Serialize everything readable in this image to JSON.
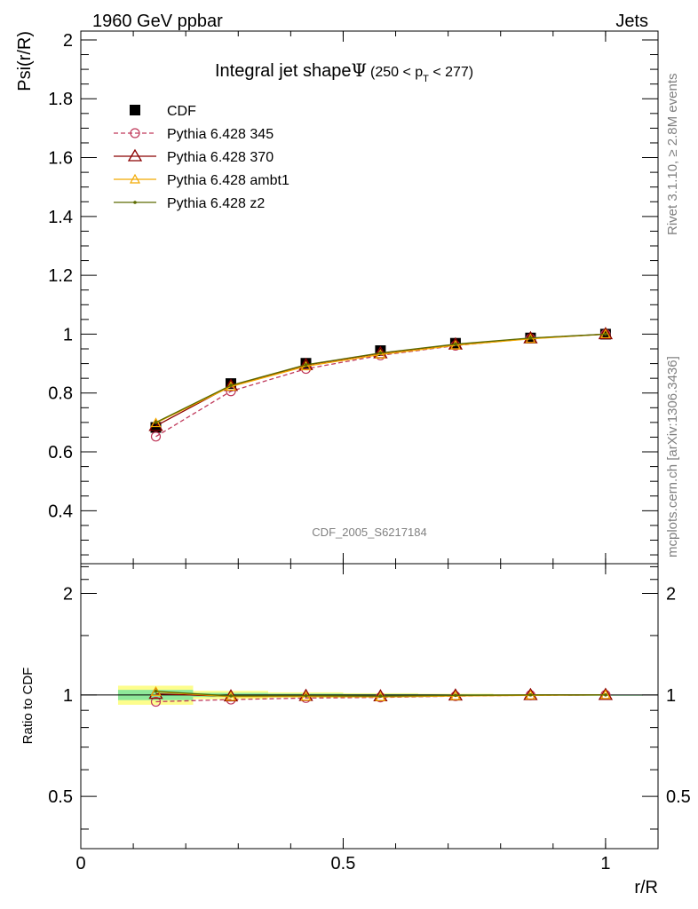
{
  "header": {
    "left": "1960 GeV ppbar",
    "right": "Jets"
  },
  "side_labels": {
    "events": "Rivet 3.1.10, ≥ 2.8M events",
    "site": "mcplots.cern.ch [arXiv:1306.3436]"
  },
  "chart_data": {
    "type": "line",
    "title_main": "Integral jet shape",
    "title_symbol": "Ψ",
    "title_range_prefix": "(250 < p",
    "title_range_sub": "T",
    "title_range_suffix": " < 277)",
    "watermark": "CDF_2005_S6217184",
    "xlabel": "r/R",
    "ylabel": "Psi(r/R)",
    "ratio_ylabel": "Ratio to CDF",
    "xlim": [
      0,
      1.1
    ],
    "ylim": [
      0.22,
      2.03
    ],
    "ratio_ylim": [
      0.35,
      2.45
    ],
    "x_ticks": [
      {
        "v": 0,
        "label": "0"
      },
      {
        "v": 0.5,
        "label": "0.5"
      },
      {
        "v": 1,
        "label": "1"
      }
    ],
    "y_ticks": [
      {
        "v": 0.4,
        "label": "0.4"
      },
      {
        "v": 0.6,
        "label": "0.6"
      },
      {
        "v": 0.8,
        "label": "0.8"
      },
      {
        "v": 1,
        "label": "1"
      },
      {
        "v": 1.2,
        "label": "1.2"
      },
      {
        "v": 1.4,
        "label": "1.4"
      },
      {
        "v": 1.6,
        "label": "1.6"
      },
      {
        "v": 1.8,
        "label": "1.8"
      },
      {
        "v": 2,
        "label": "2"
      }
    ],
    "ratio_ticks": [
      {
        "v": 0.5,
        "label": "0.5"
      },
      {
        "v": 1,
        "label": "1"
      },
      {
        "v": 2,
        "label": "2"
      }
    ],
    "x": [
      0.143,
      0.286,
      0.429,
      0.571,
      0.714,
      0.857,
      1.0
    ],
    "data": {
      "name": "CDF",
      "values": [
        0.683,
        0.832,
        0.901,
        0.944,
        0.969,
        0.987,
        1.0
      ]
    },
    "ratio_bands": [
      {
        "x0": 0.071,
        "x1": 0.214,
        "yellow": [
          0.935,
          1.065
        ],
        "green": [
          0.965,
          1.035
        ]
      },
      {
        "x0": 0.214,
        "x1": 0.357,
        "yellow": [
          0.972,
          1.028
        ],
        "green": [
          0.986,
          1.014
        ]
      },
      {
        "x0": 0.357,
        "x1": 0.5,
        "yellow": [
          0.982,
          1.018
        ],
        "green": [
          0.991,
          1.009
        ]
      },
      {
        "x0": 0.5,
        "x1": 0.643,
        "yellow": [
          0.988,
          1.012
        ],
        "green": [
          0.994,
          1.006
        ]
      },
      {
        "x0": 0.643,
        "x1": 0.786,
        "yellow": [
          0.992,
          1.008
        ],
        "green": [
          0.996,
          1.004
        ]
      },
      {
        "x0": 0.786,
        "x1": 0.929,
        "yellow": [
          0.996,
          1.004
        ],
        "green": [
          0.998,
          1.002
        ]
      },
      {
        "x0": 0.929,
        "x1": 1.071,
        "yellow": [
          0.999,
          1.001
        ],
        "green": [
          0.9995,
          1.0005
        ]
      }
    ],
    "series": [
      {
        "name": "Pythia 6.428 345",
        "color": "#c0395b",
        "dash": "5,3",
        "marker": "circle",
        "values": [
          0.652,
          0.806,
          0.882,
          0.928,
          0.961,
          0.985,
          1.0
        ]
      },
      {
        "name": "Pythia 6.428 370",
        "color": "#8b0000",
        "dash": "",
        "marker": "triangle",
        "values": [
          0.688,
          0.824,
          0.895,
          0.935,
          0.965,
          0.986,
          1.0
        ]
      },
      {
        "name": "Pythia 6.428 ambt1",
        "color": "#f2a900",
        "dash": "",
        "marker": "triangle-small",
        "values": [
          0.698,
          0.822,
          0.891,
          0.931,
          0.962,
          0.984,
          1.0
        ]
      },
      {
        "name": "Pythia 6.428 z2",
        "color": "#5c6b00",
        "dash": "",
        "marker": "dot",
        "values": [
          0.7,
          0.826,
          0.896,
          0.936,
          0.966,
          0.987,
          1.0
        ]
      }
    ]
  }
}
